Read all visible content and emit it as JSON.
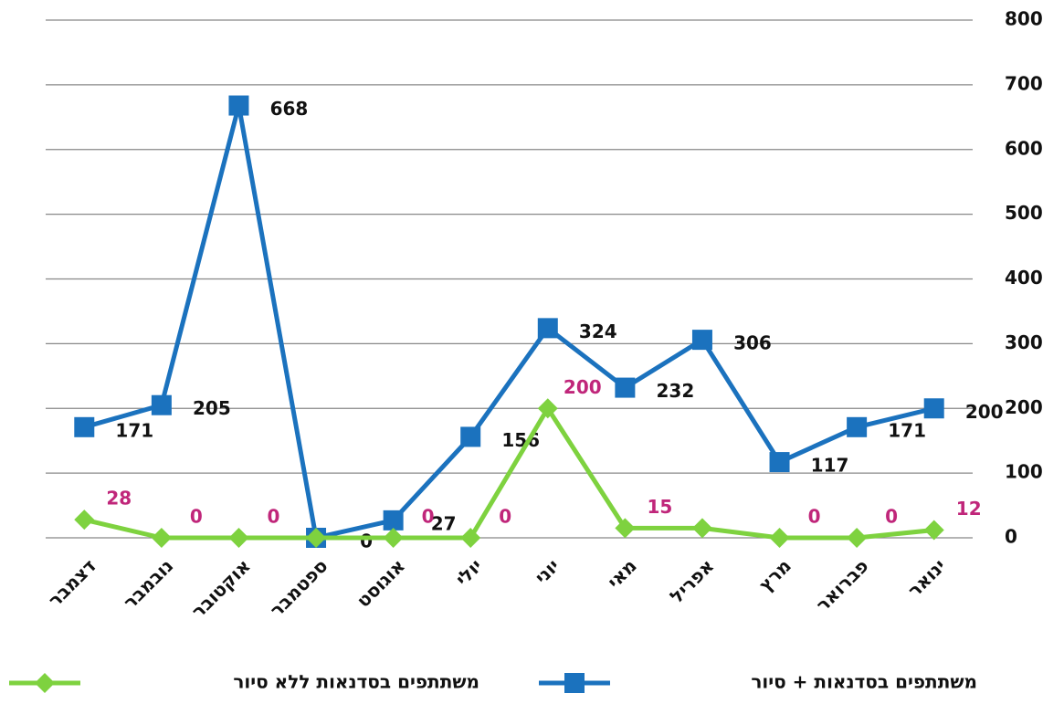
{
  "chart_data": {
    "type": "line",
    "categories": [
      "דצמבר",
      "נובמבר",
      "אוקטובר",
      "ספטמבר",
      "אוגוסט",
      "יולי",
      "יוני",
      "מאי",
      "אפריל",
      "מרץ",
      "פברואר",
      "ינואר"
    ],
    "series": [
      {
        "name": "משתתפים בסדנאות + סיור",
        "color": "#1b72be",
        "marker": "square",
        "values": [
          171,
          205,
          668,
          0,
          27,
          156,
          324,
          232,
          306,
          117,
          171,
          200
        ]
      },
      {
        "name": "משתתפים בסדנאות ללא סיור",
        "color": "#7ed23f",
        "marker": "diamond",
        "label_color": "#c0267a",
        "values": [
          28,
          0,
          0,
          0,
          0,
          0,
          200,
          15,
          15,
          0,
          0,
          12
        ],
        "value_labels": [
          "28",
          "0",
          "0",
          null,
          "0",
          "0",
          "200",
          "15",
          null,
          "0",
          "0",
          "12"
        ]
      }
    ],
    "ylim": [
      0,
      800
    ],
    "yticks": [
      0,
      100,
      200,
      300,
      400,
      500,
      600,
      700,
      800
    ],
    "grid": true,
    "y_axis_side": "right",
    "legend": "bottom"
  }
}
